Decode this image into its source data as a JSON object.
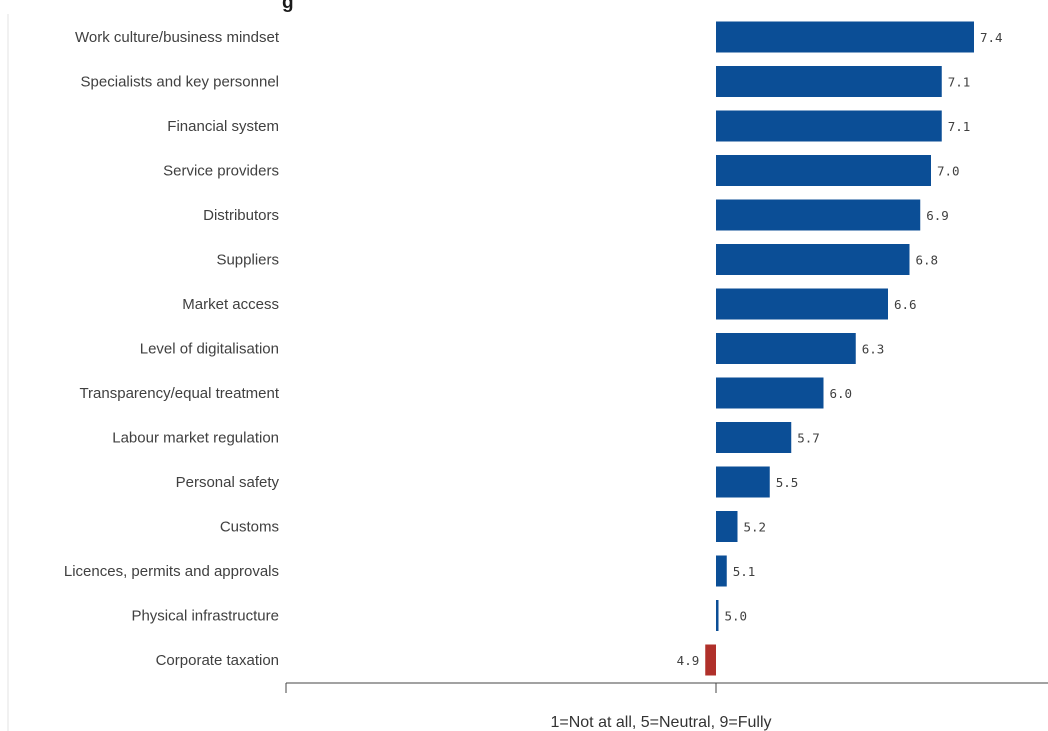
{
  "chart_data": {
    "type": "bar",
    "orientation": "horizontal",
    "title": "g",
    "xlabel": "1=Not at all, 5=Neutral, 9=Fully",
    "baseline": 5,
    "xlim": [
      1,
      9
    ],
    "categories": [
      "Work culture/business mindset",
      "Specialists and key personnel",
      "Financial system",
      "Service providers",
      "Distributors",
      "Suppliers",
      "Market access",
      "Level of digitalisation",
      "Transparency/equal treatment",
      "Labour market regulation",
      "Personal safety",
      "Customs",
      "Licences, permits and approvals",
      "Physical infrastructure",
      "Corporate taxation"
    ],
    "values": [
      7.4,
      7.1,
      7.1,
      7.0,
      6.9,
      6.8,
      6.6,
      6.3,
      6.0,
      5.7,
      5.5,
      5.2,
      5.1,
      5.0,
      4.9
    ],
    "value_labels": [
      "7.4",
      "7.1",
      "7.1",
      "7.0",
      "6.9",
      "6.8",
      "6.6",
      "6.3",
      "6.0",
      "5.7",
      "5.5",
      "5.2",
      "5.1",
      "5.0",
      "4.9"
    ],
    "colors": {
      "above": "#0b4e96",
      "below": "#b0302a"
    },
    "grid": false
  }
}
